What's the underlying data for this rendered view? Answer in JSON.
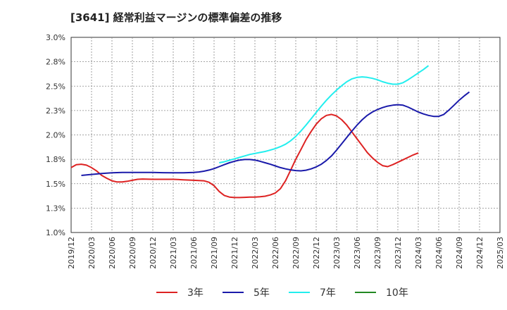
{
  "chart_data": {
    "type": "line",
    "title": "[3641]  経常利益マージンの標準偏差の推移",
    "xlabel": "",
    "ylabel": "",
    "x_ticks": [
      "2019/12",
      "2020/03",
      "2020/06",
      "2020/09",
      "2020/12",
      "2021/03",
      "2021/06",
      "2021/09",
      "2021/12",
      "2022/03",
      "2022/06",
      "2022/09",
      "2022/12",
      "2023/03",
      "2023/06",
      "2023/09",
      "2023/12",
      "2024/03",
      "2024/06",
      "2024/09",
      "2024/12",
      "2025/03"
    ],
    "y_ticks": [
      "1.0%",
      "1.3%",
      "1.5%",
      "1.8%",
      "2.0%",
      "2.3%",
      "2.5%",
      "2.8%",
      "3.0%"
    ],
    "ylim": [
      1.0,
      3.0
    ],
    "grid": true,
    "legend_position": "bottom",
    "series": [
      {
        "name": "3年",
        "color": "#dd2222",
        "points": [
          [
            0,
            1.665
          ],
          [
            0.5,
            1.695
          ],
          [
            1,
            1.7
          ],
          [
            1.5,
            1.69
          ],
          [
            2,
            1.665
          ],
          [
            2.5,
            1.63
          ],
          [
            3,
            1.585
          ],
          [
            3.5,
            1.555
          ],
          [
            4,
            1.53
          ],
          [
            4.5,
            1.518
          ],
          [
            5,
            1.518
          ],
          [
            5.5,
            1.525
          ],
          [
            6,
            1.535
          ],
          [
            6.5,
            1.545
          ],
          [
            7,
            1.548
          ],
          [
            8,
            1.545
          ],
          [
            9,
            1.545
          ],
          [
            10,
            1.545
          ],
          [
            11,
            1.54
          ],
          [
            12,
            1.535
          ],
          [
            12.5,
            1.532
          ],
          [
            13,
            1.53
          ],
          [
            13.5,
            1.515
          ],
          [
            14,
            1.48
          ],
          [
            14.5,
            1.42
          ],
          [
            15,
            1.38
          ],
          [
            15.5,
            1.363
          ],
          [
            16,
            1.358
          ],
          [
            16.5,
            1.358
          ],
          [
            17,
            1.36
          ],
          [
            17.5,
            1.363
          ],
          [
            18,
            1.363
          ],
          [
            18.5,
            1.367
          ],
          [
            19,
            1.372
          ],
          [
            19.5,
            1.385
          ],
          [
            20,
            1.405
          ],
          [
            20.5,
            1.45
          ],
          [
            21,
            1.53
          ],
          [
            21.5,
            1.64
          ],
          [
            22,
            1.75
          ],
          [
            22.5,
            1.85
          ],
          [
            23,
            1.95
          ],
          [
            23.5,
            2.035
          ],
          [
            24,
            2.11
          ],
          [
            24.5,
            2.165
          ],
          [
            25,
            2.2
          ],
          [
            25.5,
            2.21
          ],
          [
            26,
            2.195
          ],
          [
            26.5,
            2.155
          ],
          [
            27,
            2.1
          ],
          [
            27.5,
            2.03
          ],
          [
            28,
            1.96
          ],
          [
            28.5,
            1.89
          ],
          [
            29,
            1.82
          ],
          [
            29.5,
            1.765
          ],
          [
            30,
            1.72
          ],
          [
            30.5,
            1.685
          ],
          [
            31,
            1.675
          ],
          [
            31.5,
            1.695
          ],
          [
            32,
            1.72
          ],
          [
            32.5,
            1.745
          ],
          [
            33,
            1.77
          ],
          [
            33.5,
            1.795
          ],
          [
            34,
            1.815
          ]
        ]
      },
      {
        "name": "5年",
        "color": "#1a1aaa",
        "points": [
          [
            1,
            1.585
          ],
          [
            2,
            1.595
          ],
          [
            3,
            1.605
          ],
          [
            4,
            1.612
          ],
          [
            5,
            1.615
          ],
          [
            6,
            1.615
          ],
          [
            7,
            1.615
          ],
          [
            8,
            1.615
          ],
          [
            9,
            1.613
          ],
          [
            10,
            1.612
          ],
          [
            11,
            1.612
          ],
          [
            12,
            1.615
          ],
          [
            12.5,
            1.62
          ],
          [
            13,
            1.628
          ],
          [
            13.5,
            1.64
          ],
          [
            14,
            1.655
          ],
          [
            14.5,
            1.675
          ],
          [
            15,
            1.695
          ],
          [
            15.5,
            1.715
          ],
          [
            16,
            1.73
          ],
          [
            16.5,
            1.742
          ],
          [
            17,
            1.748
          ],
          [
            17.5,
            1.748
          ],
          [
            18,
            1.742
          ],
          [
            18.5,
            1.73
          ],
          [
            19,
            1.715
          ],
          [
            19.5,
            1.7
          ],
          [
            20,
            1.682
          ],
          [
            20.5,
            1.665
          ],
          [
            21,
            1.652
          ],
          [
            21.5,
            1.642
          ],
          [
            22,
            1.635
          ],
          [
            22.5,
            1.632
          ],
          [
            23,
            1.638
          ],
          [
            23.5,
            1.652
          ],
          [
            24,
            1.672
          ],
          [
            24.5,
            1.7
          ],
          [
            25,
            1.738
          ],
          [
            25.5,
            1.785
          ],
          [
            26,
            1.845
          ],
          [
            26.5,
            1.91
          ],
          [
            27,
            1.975
          ],
          [
            27.5,
            2.04
          ],
          [
            28,
            2.1
          ],
          [
            28.5,
            2.155
          ],
          [
            29,
            2.2
          ],
          [
            29.5,
            2.235
          ],
          [
            30,
            2.26
          ],
          [
            30.5,
            2.28
          ],
          [
            31,
            2.295
          ],
          [
            31.5,
            2.305
          ],
          [
            32,
            2.31
          ],
          [
            32.5,
            2.305
          ],
          [
            33,
            2.285
          ],
          [
            33.5,
            2.26
          ],
          [
            34,
            2.235
          ],
          [
            34.5,
            2.215
          ],
          [
            35,
            2.2
          ],
          [
            35.5,
            2.19
          ],
          [
            36,
            2.19
          ],
          [
            36.5,
            2.21
          ],
          [
            37,
            2.255
          ],
          [
            37.5,
            2.305
          ],
          [
            38,
            2.355
          ],
          [
            38.5,
            2.4
          ],
          [
            39,
            2.44
          ]
        ]
      },
      {
        "name": "7年",
        "color": "#22eeee",
        "points": [
          [
            14.5,
            1.715
          ],
          [
            15,
            1.725
          ],
          [
            15.5,
            1.74
          ],
          [
            16,
            1.755
          ],
          [
            16.5,
            1.77
          ],
          [
            17,
            1.785
          ],
          [
            17.5,
            1.8
          ],
          [
            18,
            1.81
          ],
          [
            18.5,
            1.82
          ],
          [
            19,
            1.83
          ],
          [
            19.5,
            1.845
          ],
          [
            20,
            1.86
          ],
          [
            20.5,
            1.88
          ],
          [
            21,
            1.905
          ],
          [
            21.5,
            1.94
          ],
          [
            22,
            1.985
          ],
          [
            22.5,
            2.04
          ],
          [
            23,
            2.1
          ],
          [
            23.5,
            2.165
          ],
          [
            24,
            2.23
          ],
          [
            24.5,
            2.295
          ],
          [
            25,
            2.355
          ],
          [
            25.5,
            2.41
          ],
          [
            26,
            2.46
          ],
          [
            26.5,
            2.505
          ],
          [
            27,
            2.545
          ],
          [
            27.5,
            2.575
          ],
          [
            28,
            2.59
          ],
          [
            28.5,
            2.595
          ],
          [
            29,
            2.59
          ],
          [
            29.5,
            2.58
          ],
          [
            30,
            2.565
          ],
          [
            30.5,
            2.545
          ],
          [
            31,
            2.53
          ],
          [
            31.5,
            2.52
          ],
          [
            32,
            2.52
          ],
          [
            32.5,
            2.535
          ],
          [
            33,
            2.565
          ],
          [
            33.5,
            2.6
          ],
          [
            34,
            2.635
          ],
          [
            34.5,
            2.67
          ],
          [
            35,
            2.71
          ]
        ]
      },
      {
        "name": "10年",
        "color": "#228822",
        "points": []
      }
    ]
  }
}
